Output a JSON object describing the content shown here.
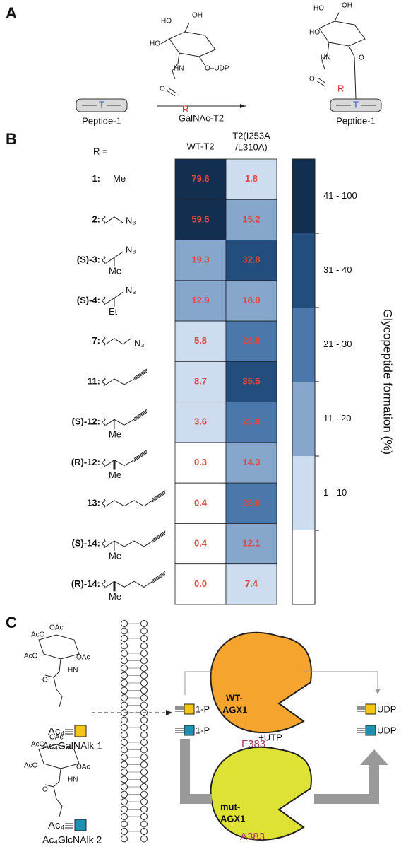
{
  "panel_a": {
    "label": "A",
    "peptide_left": "Peptide-1",
    "peptide_right": "Peptide-1",
    "residue_left": "T",
    "residue_right": "T",
    "enzyme": "GalNAc-T2",
    "donor_labels": [
      "HO",
      "OH",
      "HO",
      "HN",
      "O",
      "O–UDP",
      "R"
    ],
    "product_labels": [
      "HO",
      "OH",
      "HO",
      "HN",
      "O",
      "O",
      "R"
    ]
  },
  "panel_b": {
    "label": "B",
    "r_header": "R =",
    "columns": [
      [
        "WT-T2"
      ],
      [
        "T2(I253A",
        "/L310A)"
      ]
    ],
    "rows": [
      {
        "compound": "1:",
        "groups": [
          "Me"
        ],
        "cells": [
          "79.6",
          "1.8"
        ]
      },
      {
        "compound": "2:",
        "groups": [
          "N₃"
        ],
        "cells": [
          "59.6",
          "15.2"
        ]
      },
      {
        "compound": "(S)-3:",
        "groups": [
          "N₃",
          "Me"
        ],
        "cells": [
          "19.3",
          "32.8"
        ]
      },
      {
        "compound": "(S)-4:",
        "groups": [
          "N₃",
          "Et"
        ],
        "cells": [
          "12.9",
          "18.0"
        ]
      },
      {
        "compound": "7:",
        "groups": [
          "N₃"
        ],
        "cells": [
          "5.8",
          "28.8"
        ]
      },
      {
        "compound": "11:",
        "groups": [],
        "cells": [
          "8.7",
          "35.5"
        ]
      },
      {
        "compound": "(S)-12:",
        "groups": [
          "Me"
        ],
        "cells": [
          "3.6",
          "23.9"
        ]
      },
      {
        "compound": "(R)-12:",
        "groups": [
          "Me"
        ],
        "cells": [
          "0.3",
          "14.3"
        ]
      },
      {
        "compound": "13:",
        "groups": [],
        "cells": [
          "0.4",
          "28.6"
        ]
      },
      {
        "compound": "(S)-14:",
        "groups": [
          "Me"
        ],
        "cells": [
          "0.4",
          "12.1"
        ]
      },
      {
        "compound": "(R)-14:",
        "groups": [
          "Me"
        ],
        "cells": [
          "0.0",
          "7.4"
        ]
      }
    ],
    "scale": {
      "title": "Glycopeptide formation (%)",
      "bins": [
        {
          "label": "41 - 100",
          "color": "#132f50"
        },
        {
          "label": "31 - 40",
          "color": "#234d7c"
        },
        {
          "label": "21 - 30",
          "color": "#4b77ab"
        },
        {
          "label": "11 - 20",
          "color": "#86a6cc"
        },
        {
          "label": "1 - 10",
          "color": "#cddcee"
        },
        {
          "label": null,
          "color": "#ffffff"
        }
      ]
    }
  },
  "panel_c": {
    "label": "C",
    "sugar1_labels": [
      "OAc",
      "AcO",
      "AcO",
      "OAc",
      "HN",
      "O"
    ],
    "sugar2_labels": [
      "OAc",
      "AcO",
      "AcO",
      "OAc",
      "HN",
      "O"
    ],
    "prodrug1_prefix": "Ac₄",
    "prodrug1": "Ac₄GalNAlk 1",
    "prodrug2_prefix": "Ac₄",
    "prodrug2": "Ac₄GlcNAlk 2",
    "phosphates": [
      "1-P",
      "1-P"
    ],
    "cofactor": "+UTP",
    "products": [
      "UDP",
      "UDP"
    ],
    "enzyme_wt": [
      "WT-",
      "AGX1"
    ],
    "residue_wt": "F383",
    "enzyme_mut": [
      "mut-",
      "AGX1"
    ],
    "residue_mut": "A383"
  }
}
